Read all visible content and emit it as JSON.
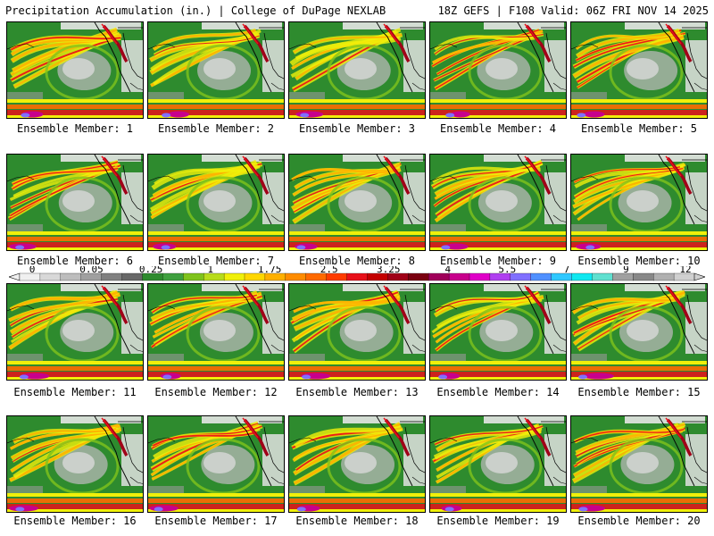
{
  "header": {
    "left_title": "Precipitation Accumulation (in.) | College of DuPage NEXLAB",
    "right_title": "18Z GEFS | F108 Valid: 06Z FRI NOV 14 2025"
  },
  "panels": [
    {
      "member": 1,
      "label": "Ensemble Member: 1"
    },
    {
      "member": 2,
      "label": "Ensemble Member: 2"
    },
    {
      "member": 3,
      "label": "Ensemble Member: 3"
    },
    {
      "member": 4,
      "label": "Ensemble Member: 4"
    },
    {
      "member": 5,
      "label": "Ensemble Member: 5"
    },
    {
      "member": 6,
      "label": "Ensemble Member: 6"
    },
    {
      "member": 7,
      "label": "Ensemble Member: 7"
    },
    {
      "member": 8,
      "label": "Ensemble Member: 8"
    },
    {
      "member": 9,
      "label": "Ensemble Member: 9"
    },
    {
      "member": 10,
      "label": "Ensemble Member: 10"
    },
    {
      "member": 11,
      "label": "Ensemble Member: 11"
    },
    {
      "member": 12,
      "label": "Ensemble Member: 12"
    },
    {
      "member": 13,
      "label": "Ensemble Member: 13"
    },
    {
      "member": 14,
      "label": "Ensemble Member: 14"
    },
    {
      "member": 15,
      "label": "Ensemble Member: 15"
    },
    {
      "member": 16,
      "label": "Ensemble Member: 16"
    },
    {
      "member": 17,
      "label": "Ensemble Member: 17"
    },
    {
      "member": 18,
      "label": "Ensemble Member: 18"
    },
    {
      "member": 19,
      "label": "Ensemble Member: 19"
    },
    {
      "member": 20,
      "label": "Ensemble Member: 20"
    }
  ],
  "colorbar": {
    "tick_labels": [
      "0",
      "0.05",
      "0.25",
      "1",
      "1.75",
      "2.5",
      "3.25",
      "4",
      "5.5",
      "7",
      "9",
      "12"
    ],
    "colors": [
      "#f0f0f0",
      "#d8d8d8",
      "#bdbdbd",
      "#a0a0a0",
      "#808080",
      "#686868",
      "#2e8b2e",
      "#3fa03f",
      "#7fc31c",
      "#b8dc1c",
      "#f0f00a",
      "#ffd700",
      "#ffb000",
      "#ff8c00",
      "#ff6a00",
      "#ff3c00",
      "#e8101a",
      "#c40000",
      "#a00018",
      "#7a0010",
      "#a0005a",
      "#c8008c",
      "#e000c8",
      "#b040f0",
      "#8070ff",
      "#5090ff",
      "#30c8ff",
      "#10e8f0",
      "#60e0d0",
      "#a0a0a0",
      "#888888",
      "#b0b0b0",
      "#d0d0d0"
    ],
    "field_colors": [
      "#2e8b2e",
      "#7fc31c",
      "#f0f00a",
      "#ffb000",
      "#ff6a00",
      "#e8101a",
      "#a00018",
      "#c0c0c0",
      "#e8e8e8"
    ]
  }
}
